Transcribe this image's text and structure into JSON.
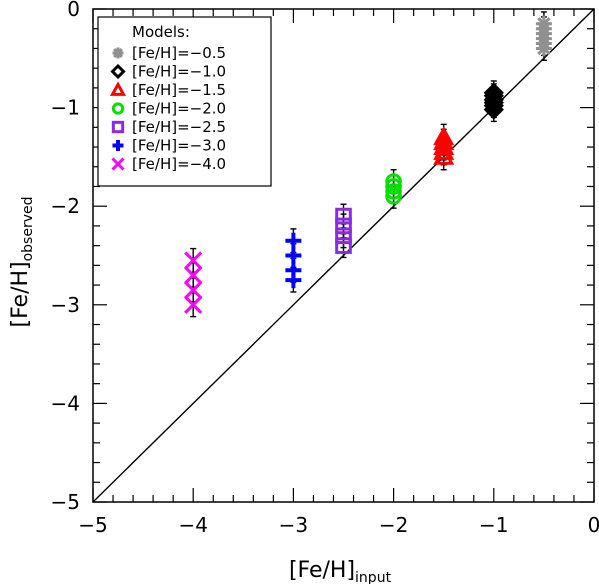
{
  "chart_data": {
    "type": "scatter",
    "xlabel": {
      "main": "[Fe/H]",
      "sub": "input"
    },
    "ylabel": {
      "main": "[Fe/H]",
      "sub": "observed"
    },
    "xlim": [
      -5,
      0
    ],
    "ylim": [
      -5,
      0
    ],
    "xticks": [
      -5,
      -4,
      -3,
      -2,
      -1,
      0
    ],
    "yticks": [
      -5,
      -4,
      -3,
      -2,
      -1,
      0
    ],
    "xtick_labels": [
      "−5",
      "−4",
      "−3",
      "−2",
      "−1",
      "0"
    ],
    "ytick_labels": [
      "−5",
      "−4",
      "−3",
      "−2",
      "−1",
      "0"
    ],
    "grid": false,
    "reference_line": "y = x",
    "legend": {
      "title": "Models:",
      "position": "top-left",
      "entries": [
        "[Fe/H]=−0.5",
        "[Fe/H]=−1.0",
        "[Fe/H]=−1.5",
        "[Fe/H]=−2.0",
        "[Fe/H]=−2.5",
        "[Fe/H]=−3.0",
        "[Fe/H]=−4.0"
      ]
    },
    "series": [
      {
        "input": -0.5,
        "marker": "asterisk",
        "color": "#909090",
        "y": [
          -0.15,
          -0.2,
          -0.25,
          -0.3,
          -0.35,
          -0.4
        ],
        "err": 0.12
      },
      {
        "input": -1.0,
        "marker": "diamond",
        "color": "#000000",
        "y": [
          -0.85,
          -0.88,
          -0.92,
          -0.95,
          -0.98,
          -1.02
        ],
        "err": 0.12
      },
      {
        "input": -1.5,
        "marker": "triangle",
        "color": "#ff0000",
        "y": [
          -1.3,
          -1.35,
          -1.4,
          -1.45,
          -1.5
        ],
        "err": 0.13
      },
      {
        "input": -2.0,
        "marker": "circle",
        "color": "#00e000",
        "y": [
          -1.75,
          -1.8,
          -1.85,
          -1.9
        ],
        "err": 0.12
      },
      {
        "input": -2.5,
        "marker": "square",
        "color": "#8a2be2",
        "y": [
          -2.1,
          -2.2,
          -2.3,
          -2.4
        ],
        "err": 0.12
      },
      {
        "input": -3.0,
        "marker": "plus",
        "color": "#0000ff",
        "y": [
          -2.35,
          -2.5,
          -2.65,
          -2.75
        ],
        "err": 0.12
      },
      {
        "input": -4.0,
        "marker": "cross",
        "color": "#ff00ff",
        "y": [
          -2.55,
          -2.7,
          -2.85,
          -3.0
        ],
        "err": 0.12
      }
    ]
  }
}
